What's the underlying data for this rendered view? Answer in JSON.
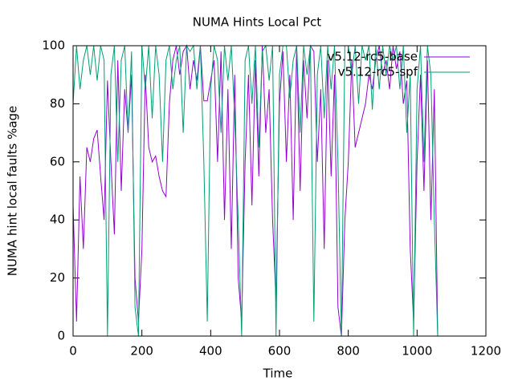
{
  "chart_data": {
    "type": "line",
    "title": "NUMA Hints Local Pct",
    "x_label": "Time",
    "y_label": "NUMA hint local faults %age",
    "x": [
      0,
      10,
      20,
      30,
      40,
      50,
      60,
      70,
      80,
      90,
      100,
      110,
      120,
      130,
      140,
      150,
      160,
      170,
      180,
      190,
      200,
      210,
      220,
      230,
      240,
      250,
      260,
      270,
      280,
      290,
      300,
      310,
      320,
      330,
      340,
      350,
      360,
      370,
      380,
      390,
      400,
      410,
      420,
      430,
      440,
      450,
      460,
      470,
      480,
      490,
      500,
      510,
      520,
      530,
      540,
      550,
      560,
      570,
      580,
      590,
      600,
      610,
      620,
      630,
      640,
      650,
      660,
      670,
      680,
      690,
      700,
      710,
      720,
      730,
      740,
      750,
      760,
      770,
      780,
      790,
      800,
      810,
      820,
      830,
      840,
      850,
      860,
      870,
      880,
      890,
      900,
      910,
      920,
      930,
      940,
      950,
      960,
      970,
      980,
      990,
      1000,
      1010,
      1020,
      1030,
      1040,
      1050,
      1060
    ],
    "series": [
      {
        "name": "v5.12-rc5-base",
        "color": "#9400d3",
        "values": [
          45,
          5,
          55,
          30,
          65,
          60,
          68,
          71,
          55,
          40,
          88,
          60,
          35,
          95,
          50,
          85,
          70,
          90,
          20,
          5,
          30,
          90,
          65,
          60,
          62,
          55,
          50,
          48,
          80,
          95,
          100,
          90,
          98,
          100,
          85,
          95,
          88,
          100,
          81,
          81,
          88,
          95,
          60,
          98,
          40,
          85,
          30,
          90,
          20,
          5,
          60,
          90,
          45,
          95,
          55,
          100,
          70,
          85,
          40,
          12,
          80,
          98,
          60,
          90,
          40,
          100,
          50,
          95,
          75,
          100,
          98,
          60,
          85,
          30,
          95,
          55,
          90,
          10,
          0,
          40,
          60,
          95,
          65,
          70,
          75,
          80,
          90,
          85,
          95,
          100,
          90,
          95,
          85,
          100,
          92,
          98,
          80,
          88,
          30,
          5,
          60,
          90,
          50,
          95,
          40,
          85,
          0
        ]
      },
      {
        "name": "v5.12-rc5-spf",
        "color": "#009e73",
        "values": [
          80,
          100,
          85,
          95,
          100,
          90,
          100,
          88,
          100,
          95,
          0,
          90,
          100,
          60,
          95,
          100,
          70,
          98,
          10,
          0,
          100,
          85,
          100,
          75,
          100,
          90,
          60,
          95,
          100,
          85,
          95,
          100,
          70,
          100,
          98,
          100,
          85,
          100,
          60,
          5,
          85,
          100,
          95,
          70,
          100,
          88,
          100,
          75,
          40,
          0,
          95,
          100,
          80,
          100,
          65,
          98,
          100,
          88,
          100,
          0,
          90,
          100,
          100,
          82,
          95,
          100,
          70,
          100,
          90,
          100,
          5,
          90,
          100,
          75,
          100,
          85,
          100,
          60,
          0,
          100,
          100,
          90,
          100,
          80,
          100,
          95,
          100,
          78,
          100,
          85,
          100,
          90,
          100,
          95,
          100,
          85,
          100,
          70,
          90,
          0,
          85,
          100,
          60,
          100,
          90,
          40,
          0
        ]
      }
    ],
    "xlim": [
      0,
      1200
    ],
    "xticks": [
      0,
      200,
      400,
      600,
      800,
      1000,
      1200
    ],
    "ylim": [
      0,
      100
    ],
    "yticks": [
      0,
      20,
      40,
      60,
      80,
      100
    ],
    "legend": "top-right"
  }
}
